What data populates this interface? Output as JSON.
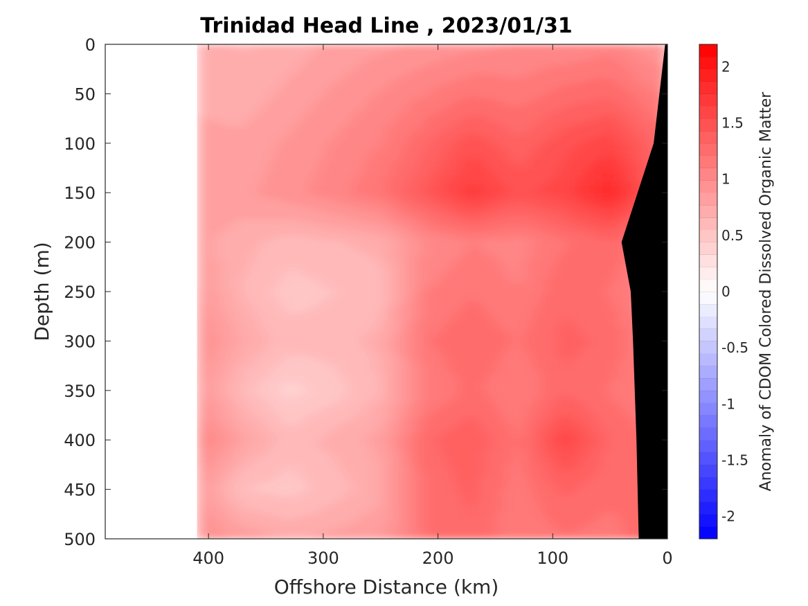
{
  "chart_data": {
    "type": "heatmap",
    "title": "Trinidad Head Line , 2023/01/31",
    "xlabel": "Offshore Distance (km)",
    "ylabel": "Depth (m)",
    "colorbar_label": "Anomaly of CDOM Colored Dissolved Organic Matter",
    "x_axis": {
      "lim": [
        490,
        0
      ],
      "reversed": true,
      "ticks": [
        400,
        300,
        200,
        100,
        0
      ],
      "tick_labels": [
        "400",
        "300",
        "200",
        "100",
        "0"
      ]
    },
    "y_axis": {
      "lim": [
        0,
        500
      ],
      "reversed": true,
      "ticks": [
        0,
        50,
        100,
        150,
        200,
        250,
        300,
        350,
        400,
        450,
        500
      ],
      "tick_labels": [
        "0",
        "50",
        "100",
        "150",
        "200",
        "250",
        "300",
        "350",
        "400",
        "450",
        "500"
      ]
    },
    "colorbar": {
      "lim": [
        -2.2,
        2.2
      ],
      "ticks": [
        2,
        1.5,
        1,
        0.5,
        0,
        -0.5,
        -1,
        -1.5,
        -2
      ],
      "tick_labels": [
        "2",
        "1.5",
        "1",
        "0.5",
        "0",
        "-0.5",
        "-1",
        "-1.5",
        "-2"
      ],
      "levels": 40,
      "colormap": "blue-white-red",
      "color_low": "#0000ff",
      "color_mid": "#ffffff",
      "color_high": "#ff0000"
    },
    "data_extent_km": [
      0,
      410
    ],
    "grid": {
      "x": [
        410,
        370,
        330,
        290,
        250,
        210,
        170,
        130,
        90,
        50,
        10
      ],
      "y": [
        0,
        50,
        100,
        150,
        200,
        250,
        300,
        350,
        400,
        450,
        500
      ]
    },
    "values": [
      [
        0.7,
        0.65,
        0.7,
        0.8,
        0.85,
        0.9,
        0.95,
        1.0,
        1.0,
        1.05,
        0.9
      ],
      [
        0.75,
        0.7,
        0.8,
        0.9,
        1.0,
        1.1,
        1.2,
        1.15,
        1.25,
        1.3,
        1.1
      ],
      [
        0.8,
        0.8,
        0.9,
        1.0,
        1.1,
        1.3,
        1.5,
        1.35,
        1.5,
        1.6,
        1.3
      ],
      [
        0.85,
        0.85,
        0.95,
        1.05,
        1.2,
        1.45,
        1.7,
        1.5,
        1.6,
        1.85,
        1.4
      ],
      [
        0.8,
        0.7,
        0.6,
        0.65,
        0.7,
        1.0,
        1.1,
        1.05,
        1.2,
        1.3,
        1.1
      ],
      [
        0.9,
        0.65,
        0.5,
        0.55,
        0.6,
        1.1,
        1.2,
        1.1,
        1.3,
        1.2,
        1.0
      ],
      [
        1.0,
        0.75,
        0.6,
        0.6,
        0.7,
        1.2,
        1.3,
        1.2,
        1.35,
        1.3,
        1.0
      ],
      [
        0.9,
        0.6,
        0.4,
        0.5,
        0.65,
        1.1,
        1.25,
        1.1,
        1.3,
        1.2,
        1.1
      ],
      [
        1.1,
        0.8,
        0.6,
        0.7,
        0.8,
        1.3,
        1.4,
        1.2,
        1.6,
        1.3,
        1.2
      ],
      [
        0.9,
        0.55,
        0.5,
        0.6,
        0.75,
        1.25,
        1.35,
        1.15,
        1.35,
        1.25,
        1.3
      ],
      [
        1.0,
        0.85,
        0.75,
        0.8,
        0.85,
        1.2,
        1.3,
        1.1,
        1.2,
        1.15,
        1.3
      ]
    ],
    "bathymetry": {
      "color": "#000000",
      "points_km_m": [
        [
          0,
          0
        ],
        [
          0,
          500
        ],
        [
          25,
          500
        ],
        [
          27,
          400
        ],
        [
          30,
          300
        ],
        [
          32,
          250
        ],
        [
          40,
          200
        ],
        [
          12,
          100
        ],
        [
          2,
          0
        ]
      ]
    }
  }
}
